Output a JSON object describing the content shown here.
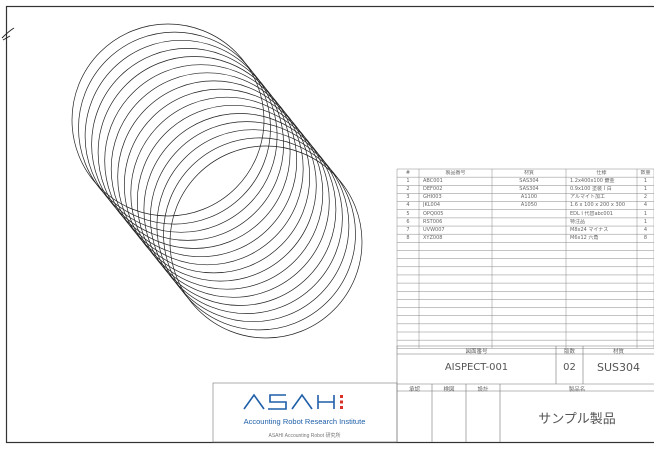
{
  "bom": {
    "headers": [
      "#",
      "製品番号",
      "材質",
      "仕様",
      "数量"
    ],
    "rows": [
      [
        "1",
        "ABC001",
        "SAS304",
        "1.2x400x100 鍍金",
        "1"
      ],
      [
        "2",
        "DEF002",
        "SAS304",
        "0.9x100 塗装 I 白",
        "1"
      ],
      [
        "3",
        "GHI003",
        "A1100",
        "アルマイト加工",
        "2"
      ],
      [
        "4",
        "JKL004",
        "A1050",
        "1.6 x 100 x 200 x 300",
        "4"
      ],
      [
        "5",
        "OPQ005",
        "",
        "EDL I 代替abc001",
        "1"
      ],
      [
        "6",
        "RST006",
        "",
        "特注品",
        "1"
      ],
      [
        "7",
        "UVW007",
        "",
        "M8x24 マイナス",
        "4"
      ],
      [
        "8",
        "XYZ008",
        "",
        "M6x12 六角",
        "8"
      ]
    ]
  },
  "title_block": {
    "drawing_no_label": "図面番号",
    "drawing_no": "AISPECT-001",
    "revision_label": "版数",
    "revision": "02",
    "material_label": "材質",
    "material": "SUS304",
    "approved_label": "承認",
    "checked_label": "検図",
    "designed_label": "設計",
    "product_name_label": "製品名",
    "product_name": "サンプル製品"
  },
  "logo": {
    "brand": "ASAHI",
    "tagline": "Accounting Robot Research Institute",
    "subtext": "ASAHI Accounting Robot 研究所",
    "accent_color": "#d9322b",
    "brand_color": "#1f5fa8"
  }
}
